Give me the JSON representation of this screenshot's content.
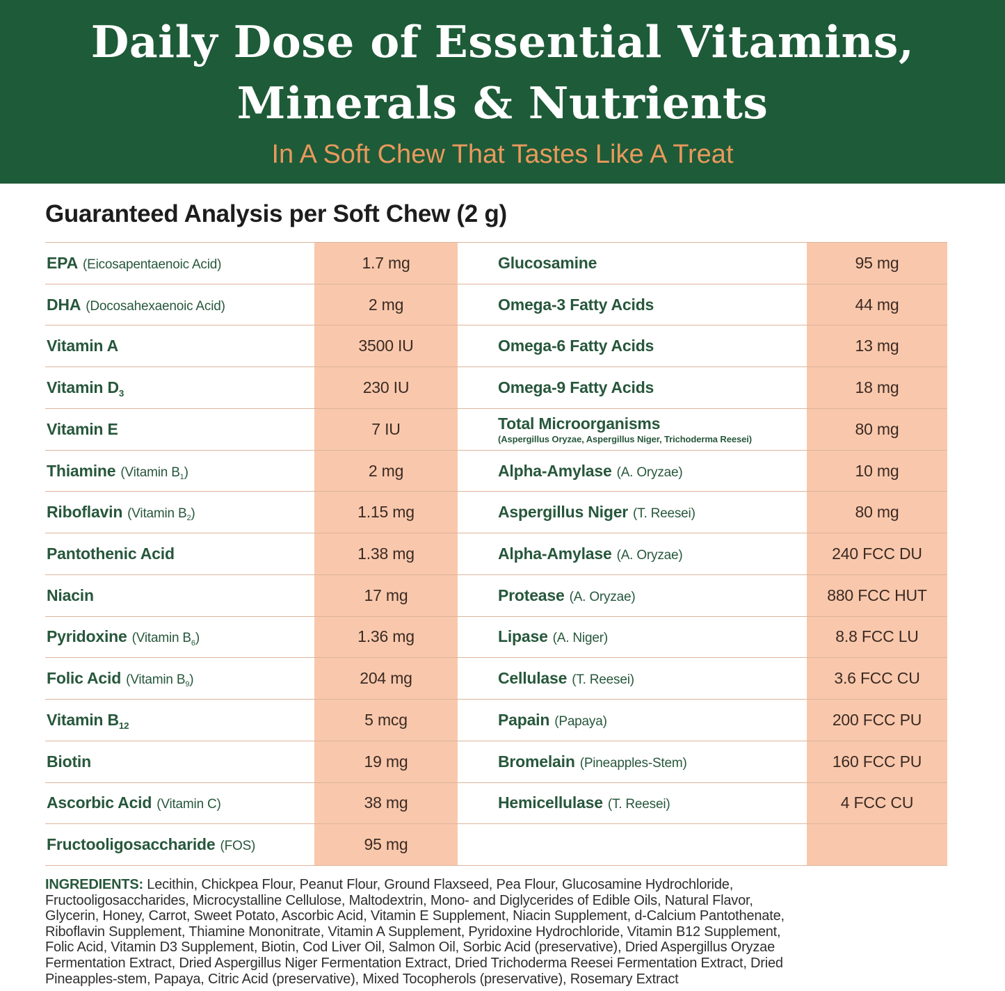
{
  "colors": {
    "banner_green": "#1E5B38",
    "subtitle_orange": "#E9995D",
    "label_green": "#27573B",
    "value_brown": "#3A2A23",
    "peach": "#F9C8AC",
    "divider": "#DDB49B"
  },
  "banner": {
    "title_line1": "Daily Dose of Essential Vitamins,",
    "title_line2": "Minerals & Nutrients",
    "subtitle": "In A Soft Chew That Tastes Like A Treat"
  },
  "analysis": {
    "heading": "Guaranteed Analysis per Soft Chew (2 g)"
  },
  "table": {
    "left_rows": [
      {
        "name": "EPA",
        "paren": "(Eicosapentaenoic Acid)",
        "note": "",
        "value": "1.7 mg"
      },
      {
        "name": "DHA",
        "paren": "(Docosahexaenoic Acid)",
        "note": "",
        "value": "2 mg"
      },
      {
        "name": "Vitamin A",
        "paren": "",
        "note": "",
        "value": "3500 IU"
      },
      {
        "name": "Vitamin D_{3}",
        "paren": "",
        "note": "",
        "value": "230 IU"
      },
      {
        "name": "Vitamin E",
        "paren": "",
        "note": "",
        "value": "7 IU"
      },
      {
        "name": "Thiamine",
        "paren": "(Vitamin B_{1})",
        "note": "",
        "value": "2 mg"
      },
      {
        "name": "Riboflavin",
        "paren": "(Vitamin B_{2})",
        "note": "",
        "value": "1.15 mg"
      },
      {
        "name": "Pantothenic Acid",
        "paren": "",
        "note": "",
        "value": "1.38 mg"
      },
      {
        "name": "Niacin",
        "paren": "",
        "note": "",
        "value": "17 mg"
      },
      {
        "name": "Pyridoxine",
        "paren": "(Vitamin B_{6})",
        "note": "",
        "value": "1.36 mg"
      },
      {
        "name": "Folic Acid",
        "paren": "(Vitamin B_{9})",
        "note": "",
        "value": "204 mg"
      },
      {
        "name": "Vitamin B_{12}",
        "paren": "",
        "note": "",
        "value": "5 mcg"
      },
      {
        "name": "Biotin",
        "paren": "",
        "note": "",
        "value": "19 mg"
      },
      {
        "name": "Ascorbic Acid",
        "paren": "(Vitamin C)",
        "note": "",
        "value": "38 mg"
      },
      {
        "name": "Fructooligosaccharide",
        "paren": "(FOS)",
        "note": "",
        "value": "95 mg"
      }
    ],
    "right_rows": [
      {
        "name": "Glucosamine",
        "paren": "",
        "note": "",
        "value": "95 mg"
      },
      {
        "name": "Omega-3 Fatty Acids",
        "paren": "",
        "note": "",
        "value": "44 mg"
      },
      {
        "name": "Omega-6 Fatty Acids",
        "paren": "",
        "note": "",
        "value": "13 mg"
      },
      {
        "name": "Omega-9 Fatty Acids",
        "paren": "",
        "note": "",
        "value": "18 mg"
      },
      {
        "name": "Total Microorganisms",
        "paren": "",
        "note": "(Aspergillus Oryzae, Aspergillus Niger, Trichoderma Reesei)",
        "value": "80 mg"
      },
      {
        "name": "Alpha-Amylase",
        "paren": "(A. Oryzae)",
        "note": "",
        "value": "10 mg"
      },
      {
        "name": "Aspergillus Niger",
        "paren": "(T. Reesei)",
        "note": "",
        "value": "80 mg"
      },
      {
        "name": "Alpha-Amylase",
        "paren": "(A. Oryzae)",
        "note": "",
        "value": "240 FCC DU"
      },
      {
        "name": "Protease",
        "paren": "(A. Oryzae)",
        "note": "",
        "value": "880 FCC HUT"
      },
      {
        "name": "Lipase",
        "paren": "(A. Niger)",
        "note": "",
        "value": "8.8 FCC LU"
      },
      {
        "name": "Cellulase",
        "paren": "(T. Reesei)",
        "note": "",
        "value": "3.6 FCC CU"
      },
      {
        "name": "Papain",
        "paren": "(Papaya)",
        "note": "",
        "value": "200 FCC PU"
      },
      {
        "name": "Bromelain",
        "paren": "(Pineapples-Stem)",
        "note": "",
        "value": "160 FCC PU"
      },
      {
        "name": "Hemicellulase",
        "paren": "(T. Reesei)",
        "note": "",
        "value": "4 FCC CU"
      },
      {
        "name": "",
        "paren": "",
        "note": "",
        "value": ""
      }
    ]
  },
  "ingredients": {
    "label": "INGREDIENTS:",
    "lines": [
      "Lecithin, Chickpea Flour, Peanut Flour, Ground Flaxseed, Pea Flour, Glucosamine Hydrochloride,",
      "Fructooligosaccharides, Microcystalline Cellulose, Maltodextrin, Mono- and Diglycerides of Edible Oils, Natural Flavor,",
      "Glycerin, Honey, Carrot, Sweet Potato, Ascorbic Acid, Vitamin E Supplement, Niacin Supplement, d-Calcium Pantothenate,",
      "Riboflavin Supplement, Thiamine Mononitrate, Vitamin A Supplement, Pyridoxine Hydrochloride, Vitamin B12 Supplement,",
      "Folic Acid, Vitamin D3 Supplement, Biotin, Cod Liver Oil, Salmon Oil, Sorbic Acid (preservative), Dried Aspergillus Oryzae",
      "Fermentation Extract, Dried Aspergillus Niger Fermentation Extract, Dried Trichoderma Reesei Fermentation Extract, Dried",
      "Pineapples-stem, Papaya, Citric Acid (preservative), Mixed Tocopherols (preservative), Rosemary Extract"
    ]
  }
}
